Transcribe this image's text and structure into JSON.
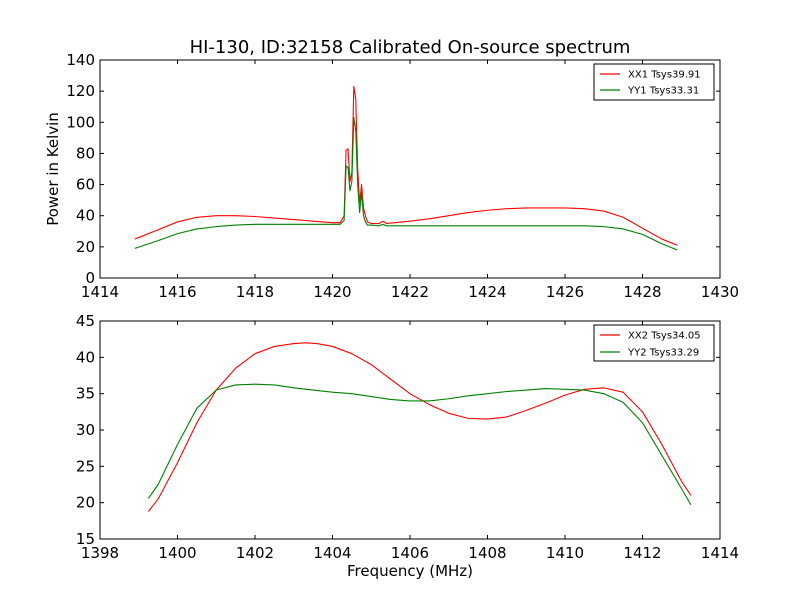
{
  "chart_data": [
    {
      "type": "line",
      "title": "HI-130, ID:32158 Calibrated On-source spectrum",
      "xlabel": "",
      "ylabel": "Power in Kelvin",
      "xlim": [
        1414,
        1430
      ],
      "ylim": [
        0,
        140
      ],
      "xticks": [
        "1414",
        "1416",
        "1418",
        "1420",
        "1422",
        "1424",
        "1426",
        "1428",
        "1430"
      ],
      "yticks": [
        "0",
        "20",
        "40",
        "60",
        "80",
        "100",
        "120",
        "140"
      ],
      "legend_position": "top-right",
      "series": [
        {
          "name": "XX1 Tsys39.91",
          "color": "#ff0000",
          "x": [
            1414.9,
            1415.5,
            1416.0,
            1416.5,
            1417.0,
            1417.5,
            1418.0,
            1418.5,
            1419.0,
            1419.5,
            1420.0,
            1420.2,
            1420.3,
            1420.35,
            1420.4,
            1420.45,
            1420.5,
            1420.55,
            1420.6,
            1420.65,
            1420.7,
            1420.75,
            1420.8,
            1420.85,
            1420.9,
            1421.0,
            1421.2,
            1421.3,
            1421.4,
            1421.6,
            1422.0,
            1422.5,
            1423.0,
            1423.5,
            1424.0,
            1424.5,
            1425.0,
            1425.5,
            1426.0,
            1426.5,
            1427.0,
            1427.5,
            1428.0,
            1428.5,
            1428.9
          ],
          "y": [
            25,
            31,
            36,
            39,
            40,
            40,
            39.5,
            38.5,
            37.5,
            36.5,
            35.5,
            35.5,
            40,
            82,
            83,
            62,
            68,
            123,
            115,
            70,
            48,
            60,
            45,
            40,
            36,
            35,
            35,
            36.5,
            35,
            35.5,
            36.5,
            38,
            40,
            42,
            43.5,
            44.5,
            45,
            45,
            45,
            44.5,
            43,
            39,
            32,
            25,
            21
          ]
        },
        {
          "name": "YY1 Tsys33.31",
          "color": "#008000",
          "x": [
            1414.9,
            1415.5,
            1416.0,
            1416.5,
            1417.0,
            1417.5,
            1418.0,
            1418.5,
            1419.0,
            1419.5,
            1420.0,
            1420.2,
            1420.3,
            1420.35,
            1420.4,
            1420.45,
            1420.5,
            1420.55,
            1420.6,
            1420.65,
            1420.7,
            1420.75,
            1420.8,
            1420.85,
            1420.9,
            1421.0,
            1421.2,
            1421.3,
            1421.4,
            1421.6,
            1422.0,
            1422.5,
            1423.0,
            1423.5,
            1424.0,
            1424.5,
            1425.0,
            1425.5,
            1426.0,
            1426.5,
            1427.0,
            1427.5,
            1428.0,
            1428.5,
            1428.9
          ],
          "y": [
            19,
            24,
            28.5,
            31.5,
            33,
            34,
            34.5,
            34.5,
            34.5,
            34.5,
            34.5,
            34.5,
            37,
            72,
            71,
            56,
            62,
            103,
            95,
            60,
            42,
            55,
            40,
            36,
            34,
            34,
            33.5,
            34.5,
            33.5,
            33.5,
            33.5,
            33.5,
            33.5,
            33.5,
            33.5,
            33.5,
            33.5,
            33.5,
            33.5,
            33.5,
            33,
            31.5,
            28,
            22,
            18
          ]
        }
      ]
    },
    {
      "type": "line",
      "title": "",
      "xlabel": "Frequency (MHz)",
      "ylabel": "",
      "xlim": [
        1398,
        1414
      ],
      "ylim": [
        15,
        45
      ],
      "xticks": [
        "1398",
        "1400",
        "1402",
        "1404",
        "1406",
        "1408",
        "1410",
        "1412",
        "1414"
      ],
      "yticks": [
        "15",
        "20",
        "25",
        "30",
        "35",
        "40",
        "45"
      ],
      "legend_position": "top-right",
      "series": [
        {
          "name": "XX2 Tsys34.05",
          "color": "#ff0000",
          "x": [
            1399.25,
            1399.5,
            1400.0,
            1400.5,
            1401.0,
            1401.5,
            1402.0,
            1402.5,
            1403.0,
            1403.3,
            1403.6,
            1404.0,
            1404.5,
            1405.0,
            1405.5,
            1406.0,
            1406.5,
            1407.0,
            1407.5,
            1408.0,
            1408.5,
            1409.0,
            1409.5,
            1410.0,
            1410.5,
            1411.0,
            1411.5,
            1412.0,
            1412.5,
            1413.0,
            1413.25
          ],
          "y": [
            18.8,
            20.5,
            25.5,
            31,
            35.5,
            38.5,
            40.5,
            41.5,
            41.9,
            42,
            41.9,
            41.5,
            40.5,
            39,
            37,
            35,
            33.5,
            32.3,
            31.6,
            31.5,
            31.8,
            32.7,
            33.7,
            34.8,
            35.6,
            35.8,
            35.2,
            32.5,
            28,
            23,
            21
          ]
        },
        {
          "name": "YY2 Tsys33.29",
          "color": "#008000",
          "x": [
            1399.25,
            1399.5,
            1400.0,
            1400.5,
            1401.0,
            1401.5,
            1402.0,
            1402.5,
            1403.0,
            1403.5,
            1404.0,
            1404.5,
            1405.0,
            1405.5,
            1406.0,
            1406.5,
            1407.0,
            1407.5,
            1408.0,
            1408.5,
            1409.0,
            1409.5,
            1410.0,
            1410.5,
            1411.0,
            1411.5,
            1412.0,
            1412.5,
            1413.0,
            1413.25
          ],
          "y": [
            20.6,
            22.5,
            28,
            33,
            35.5,
            36.2,
            36.3,
            36.2,
            35.8,
            35.5,
            35.2,
            35,
            34.6,
            34.2,
            34,
            34,
            34.3,
            34.7,
            35,
            35.3,
            35.5,
            35.7,
            35.6,
            35.5,
            35,
            33.8,
            31,
            26.5,
            22,
            19.7
          ]
        }
      ]
    }
  ]
}
